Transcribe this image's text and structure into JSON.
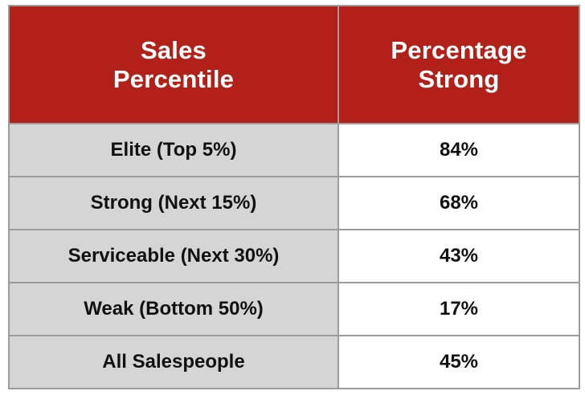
{
  "chart_data": {
    "type": "table",
    "columns": [
      "Sales Percentile",
      "Percentage Strong"
    ],
    "rows": [
      {
        "label": "Elite (Top 5%)",
        "value": "84%"
      },
      {
        "label": "Strong (Next 15%)",
        "value": "68%"
      },
      {
        "label": "Serviceable (Next 30%)",
        "value": "43%"
      },
      {
        "label": "Weak (Bottom 50%)",
        "value": "17%"
      },
      {
        "label": "All Salespeople",
        "value": "45%"
      }
    ]
  },
  "colors": {
    "header_bg": "#b3201a",
    "header_text": "#ffffff",
    "label_cell_bg": "#d5d5d5",
    "value_cell_bg": "#ffffff",
    "border": "#9c9c9c"
  }
}
